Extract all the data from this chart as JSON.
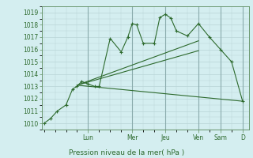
{
  "background_color": "#d4eef0",
  "grid_color": "#b8d4d6",
  "line_color": "#2d6a2d",
  "marker_color": "#2d6a2d",
  "xlabel": "Pression niveau de la mer( hPa )",
  "ylim": [
    1009.5,
    1019.5
  ],
  "yticks": [
    1010,
    1011,
    1012,
    1013,
    1014,
    1015,
    1016,
    1017,
    1018,
    1019
  ],
  "day_labels": [
    "Lun",
    "Mer",
    "Jeu",
    "Ven",
    "Sam",
    "D"
  ],
  "day_positions": [
    2.0,
    4.0,
    5.5,
    7.0,
    8.0,
    9.0
  ],
  "series1": {
    "x": [
      0,
      0.3,
      0.6,
      1.0,
      1.3,
      1.5,
      1.7,
      2.0,
      2.3,
      2.5,
      3.0,
      3.5,
      3.8,
      4.0,
      4.2,
      4.5,
      5.0,
      5.25,
      5.5,
      5.75,
      6.0,
      6.5,
      7.0,
      7.5,
      8.0,
      8.5,
      9.0
    ],
    "y": [
      1010.0,
      1010.4,
      1011.0,
      1011.5,
      1012.8,
      1013.0,
      1013.4,
      1013.2,
      1013.0,
      1013.0,
      1016.9,
      1015.8,
      1017.0,
      1018.1,
      1018.0,
      1016.5,
      1016.5,
      1018.6,
      1018.85,
      1018.55,
      1017.5,
      1017.1,
      1018.1,
      1017.0,
      1016.0,
      1015.0,
      1011.8
    ]
  },
  "series2": {
    "x": [
      1.5,
      7.0
    ],
    "y": [
      1013.1,
      1016.7
    ]
  },
  "series3": {
    "x": [
      1.5,
      7.0
    ],
    "y": [
      1013.1,
      1015.9
    ]
  },
  "series4": {
    "x": [
      1.5,
      9.0
    ],
    "y": [
      1013.1,
      1011.8
    ]
  },
  "xlim": [
    -0.1,
    9.3
  ]
}
